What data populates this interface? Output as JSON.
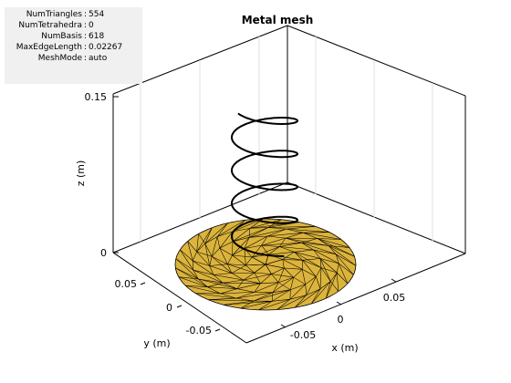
{
  "figure": {
    "title": "Metal mesh",
    "xlabel": "x (m)",
    "ylabel": "y (m)",
    "zlabel": "z (m)"
  },
  "info_panel": {
    "rows": [
      {
        "key": "NumTriangles",
        "value": "554"
      },
      {
        "key": "NumTetrahedra",
        "value": "0"
      },
      {
        "key": "NumBasis",
        "value": "618"
      },
      {
        "key": "MaxEdgeLength",
        "value": "0.02267"
      },
      {
        "key": "MeshMode",
        "value": "auto"
      }
    ]
  },
  "axes": {
    "z_ticks": [
      "0.15",
      "0"
    ],
    "y_ticks": [
      "0.05",
      "0",
      "-0.05"
    ],
    "x_ticks": [
      "0.05",
      "0",
      "-0.05"
    ]
  },
  "colors": {
    "mesh_fill": "#dcb43c",
    "mesh_edge": "#000000",
    "helix": "#000000",
    "box": "#000000",
    "grid": "#d9d9d9"
  }
}
